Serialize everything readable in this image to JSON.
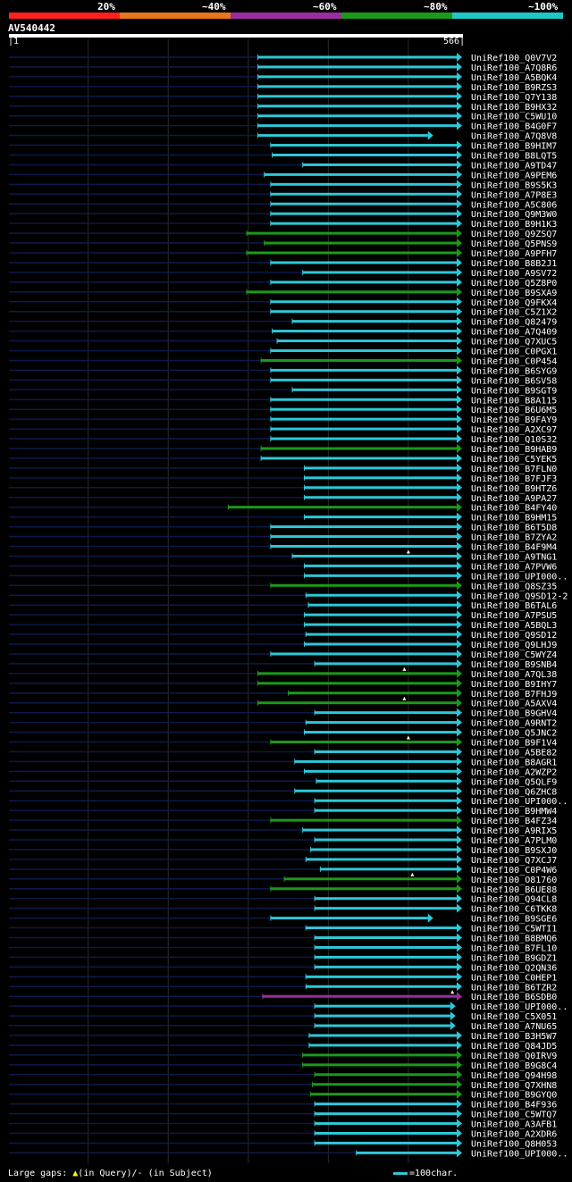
{
  "legend": [
    {
      "label": "20%",
      "color": "#ff2020"
    },
    {
      "label": "~40%",
      "color": "#e8761c"
    },
    {
      "label": "~60%",
      "color": "#9a2d9e"
    },
    {
      "label": "~80%",
      "color": "#1a9a1a"
    },
    {
      "label": "~100%",
      "color": "#1ec8c8"
    }
  ],
  "query": {
    "id": "AV540442",
    "start": "1",
    "end": "566"
  },
  "colors": {
    "cyan": "#2cc8d8",
    "green": "#1a9a1a",
    "purple": "#9a2d9e",
    "dark": "#0c1a4a",
    "grid": "#2a2a2a",
    "gap": "#ffffcc"
  },
  "hits": [
    {
      "label": "UniRef100_Q0V7V2",
      "start": 312,
      "end": 566,
      "color": "cyan"
    },
    {
      "label": "UniRef100_A7Q8R6",
      "start": 312,
      "end": 566,
      "color": "cyan"
    },
    {
      "label": "UniRef100_A5BQK4",
      "start": 312,
      "end": 566,
      "color": "cyan"
    },
    {
      "label": "UniRef100_B9RZS3",
      "start": 312,
      "end": 566,
      "color": "cyan"
    },
    {
      "label": "UniRef100_Q7Y138",
      "start": 312,
      "end": 566,
      "color": "cyan"
    },
    {
      "label": "UniRef100_B9HX32",
      "start": 312,
      "end": 566,
      "color": "cyan"
    },
    {
      "label": "UniRef100_C5WU10",
      "start": 312,
      "end": 566,
      "color": "cyan"
    },
    {
      "label": "UniRef100_B4G0F7",
      "start": 312,
      "end": 566,
      "color": "cyan"
    },
    {
      "label": "UniRef100_A7Q8V8",
      "start": 312,
      "end": 530,
      "color": "cyan"
    },
    {
      "label": "UniRef100_B9HIM7",
      "start": 328,
      "end": 566,
      "color": "cyan"
    },
    {
      "label": "UniRef100_B8LQT5",
      "start": 330,
      "end": 566,
      "color": "cyan"
    },
    {
      "label": "UniRef100_A9TD47",
      "start": 368,
      "end": 566,
      "color": "cyan"
    },
    {
      "label": "UniRef100_A9PEM6",
      "start": 320,
      "end": 566,
      "color": "cyan"
    },
    {
      "label": "UniRef100_B9S5K3",
      "start": 328,
      "end": 566,
      "color": "cyan"
    },
    {
      "label": "UniRef100_A7P8E3",
      "start": 328,
      "end": 566,
      "color": "cyan"
    },
    {
      "label": "UniRef100_A5C806",
      "start": 328,
      "end": 566,
      "color": "cyan"
    },
    {
      "label": "UniRef100_Q9M3W0",
      "start": 328,
      "end": 566,
      "color": "cyan"
    },
    {
      "label": "UniRef100_B9H1K3",
      "start": 328,
      "end": 566,
      "color": "cyan"
    },
    {
      "label": "UniRef100_Q9ZSQ7",
      "start": 298,
      "end": 566,
      "color": "green"
    },
    {
      "label": "UniRef100_Q5PNS9",
      "start": 320,
      "end": 566,
      "color": "green"
    },
    {
      "label": "UniRef100_A9PFH7",
      "start": 298,
      "end": 566,
      "color": "green"
    },
    {
      "label": "UniRef100_B8B2J1",
      "start": 328,
      "end": 566,
      "color": "cyan"
    },
    {
      "label": "UniRef100_A9SV72",
      "start": 368,
      "end": 566,
      "color": "cyan"
    },
    {
      "label": "UniRef100_Q5Z8P0",
      "start": 328,
      "end": 566,
      "color": "cyan"
    },
    {
      "label": "UniRef100_B9SXA9",
      "start": 298,
      "end": 566,
      "color": "green"
    },
    {
      "label": "UniRef100_Q9FKX4",
      "start": 328,
      "end": 566,
      "color": "cyan"
    },
    {
      "label": "UniRef100_C5Z1X2",
      "start": 328,
      "end": 566,
      "color": "cyan"
    },
    {
      "label": "UniRef100_Q82479",
      "start": 355,
      "end": 566,
      "color": "cyan"
    },
    {
      "label": "UniRef100_A7Q409",
      "start": 330,
      "end": 566,
      "color": "cyan"
    },
    {
      "label": "UniRef100_Q7XUC5",
      "start": 336,
      "end": 566,
      "color": "cyan"
    },
    {
      "label": "UniRef100_C0PGX1",
      "start": 328,
      "end": 566,
      "color": "cyan"
    },
    {
      "label": "UniRef100_C0P454",
      "start": 316,
      "end": 566,
      "color": "green"
    },
    {
      "label": "UniRef100_B6SYG9",
      "start": 328,
      "end": 566,
      "color": "cyan"
    },
    {
      "label": "UniRef100_B6SV58",
      "start": 328,
      "end": 566,
      "color": "cyan"
    },
    {
      "label": "UniRef100_B9SGT9",
      "start": 355,
      "end": 566,
      "color": "cyan"
    },
    {
      "label": "UniRef100_B8A115",
      "start": 328,
      "end": 566,
      "color": "cyan"
    },
    {
      "label": "UniRef100_B6U6M5",
      "start": 328,
      "end": 566,
      "color": "cyan"
    },
    {
      "label": "UniRef100_B9FAY9",
      "start": 328,
      "end": 566,
      "color": "cyan"
    },
    {
      "label": "UniRef100_A2XC97",
      "start": 328,
      "end": 566,
      "color": "cyan"
    },
    {
      "label": "UniRef100_Q10S32",
      "start": 328,
      "end": 566,
      "color": "cyan"
    },
    {
      "label": "UniRef100_B9HAB9",
      "start": 316,
      "end": 566,
      "color": "green"
    },
    {
      "label": "UniRef100_C5YEK5",
      "start": 316,
      "end": 566,
      "color": "cyan"
    },
    {
      "label": "UniRef100_B7FLN0",
      "start": 370,
      "end": 566,
      "color": "cyan"
    },
    {
      "label": "UniRef100_B7FJF3",
      "start": 370,
      "end": 566,
      "color": "cyan"
    },
    {
      "label": "UniRef100_B9HTZ6",
      "start": 370,
      "end": 566,
      "color": "cyan"
    },
    {
      "label": "UniRef100_A9PA27",
      "start": 370,
      "end": 566,
      "color": "cyan"
    },
    {
      "label": "UniRef100_B4FY40",
      "start": 275,
      "end": 566,
      "color": "green"
    },
    {
      "label": "UniRef100_B9HM15",
      "start": 370,
      "end": 566,
      "color": "cyan"
    },
    {
      "label": "UniRef100_B6T5D8",
      "start": 328,
      "end": 566,
      "color": "cyan"
    },
    {
      "label": "UniRef100_B7ZYA2",
      "start": 328,
      "end": 566,
      "color": "cyan"
    },
    {
      "label": "UniRef100_B4F9M4",
      "start": 328,
      "end": 566,
      "color": "cyan"
    },
    {
      "label": "UniRef100_A9TNG1",
      "start": 355,
      "end": 566,
      "color": "cyan",
      "gap": 500
    },
    {
      "label": "UniRef100_A7PVW6",
      "start": 370,
      "end": 566,
      "color": "cyan"
    },
    {
      "label": "UniRef100_UPI000..",
      "start": 370,
      "end": 566,
      "color": "cyan"
    },
    {
      "label": "UniRef100_Q8SZ35",
      "start": 328,
      "end": 566,
      "color": "green"
    },
    {
      "label": "UniRef100_Q9SD12-2",
      "start": 372,
      "end": 566,
      "color": "cyan"
    },
    {
      "label": "UniRef100_B6TAL6",
      "start": 375,
      "end": 566,
      "color": "cyan"
    },
    {
      "label": "UniRef100_A7PSU5",
      "start": 370,
      "end": 566,
      "color": "cyan"
    },
    {
      "label": "UniRef100_A5BQL3",
      "start": 370,
      "end": 566,
      "color": "cyan"
    },
    {
      "label": "UniRef100_Q9SD12",
      "start": 372,
      "end": 566,
      "color": "cyan"
    },
    {
      "label": "UniRef100_Q9LHJ9",
      "start": 370,
      "end": 566,
      "color": "cyan"
    },
    {
      "label": "UniRef100_C5WYZ4",
      "start": 328,
      "end": 566,
      "color": "cyan"
    },
    {
      "label": "UniRef100_B9SNB4",
      "start": 383,
      "end": 566,
      "color": "cyan"
    },
    {
      "label": "UniRef100_A7QL38",
      "start": 312,
      "end": 566,
      "color": "green",
      "gap": 495
    },
    {
      "label": "UniRef100_B9IHY7",
      "start": 312,
      "end": 566,
      "color": "green"
    },
    {
      "label": "UniRef100_B7FHJ9",
      "start": 350,
      "end": 566,
      "color": "green"
    },
    {
      "label": "UniRef100_A5AXV4",
      "start": 312,
      "end": 566,
      "color": "green",
      "gap": 495
    },
    {
      "label": "UniRef100_B9GHV4",
      "start": 383,
      "end": 566,
      "color": "cyan"
    },
    {
      "label": "UniRef100_A9RNT2",
      "start": 372,
      "end": 566,
      "color": "cyan"
    },
    {
      "label": "UniRef100_Q5JNC2",
      "start": 370,
      "end": 566,
      "color": "cyan"
    },
    {
      "label": "UniRef100_B9F1V4",
      "start": 328,
      "end": 566,
      "color": "green",
      "gap": 500
    },
    {
      "label": "UniRef100_A5BE82",
      "start": 383,
      "end": 566,
      "color": "cyan"
    },
    {
      "label": "UniRef100_B8AGR1",
      "start": 358,
      "end": 566,
      "color": "cyan"
    },
    {
      "label": "UniRef100_A2WZP2",
      "start": 370,
      "end": 566,
      "color": "cyan"
    },
    {
      "label": "UniRef100_Q5QLF9",
      "start": 385,
      "end": 566,
      "color": "cyan"
    },
    {
      "label": "UniRef100_Q6ZHC8",
      "start": 358,
      "end": 566,
      "color": "cyan"
    },
    {
      "label": "UniRef100_UPI000..",
      "start": 383,
      "end": 566,
      "color": "cyan"
    },
    {
      "label": "UniRef100_B9HMW4",
      "start": 383,
      "end": 566,
      "color": "cyan"
    },
    {
      "label": "UniRef100_B4FZ34",
      "start": 328,
      "end": 566,
      "color": "green"
    },
    {
      "label": "UniRef100_A9RIX5",
      "start": 368,
      "end": 566,
      "color": "cyan"
    },
    {
      "label": "UniRef100_A7PLM0",
      "start": 383,
      "end": 566,
      "color": "cyan"
    },
    {
      "label": "UniRef100_B9SXJ0",
      "start": 378,
      "end": 566,
      "color": "cyan"
    },
    {
      "label": "UniRef100_Q7XCJ7",
      "start": 372,
      "end": 566,
      "color": "cyan"
    },
    {
      "label": "UniRef100_C0P4W6",
      "start": 390,
      "end": 566,
      "color": "cyan"
    },
    {
      "label": "UniRef100_O81760",
      "start": 345,
      "end": 566,
      "color": "green",
      "gap": 505
    },
    {
      "label": "UniRef100_B6UE88",
      "start": 328,
      "end": 566,
      "color": "green"
    },
    {
      "label": "UniRef100_Q94CL8",
      "start": 383,
      "end": 566,
      "color": "cyan"
    },
    {
      "label": "UniRef100_C6TKK8",
      "start": 383,
      "end": 566,
      "color": "cyan"
    },
    {
      "label": "UniRef100_B9SGE6",
      "start": 328,
      "end": 530,
      "color": "cyan"
    },
    {
      "label": "UniRef100_C5WTI1",
      "start": 372,
      "end": 566,
      "color": "cyan"
    },
    {
      "label": "UniRef100_B8BMQ6",
      "start": 383,
      "end": 566,
      "color": "cyan"
    },
    {
      "label": "UniRef100_B7FL10",
      "start": 383,
      "end": 566,
      "color": "cyan"
    },
    {
      "label": "UniRef100_B9GDZ1",
      "start": 383,
      "end": 566,
      "color": "cyan"
    },
    {
      "label": "UniRef100_Q2QN36",
      "start": 383,
      "end": 566,
      "color": "cyan"
    },
    {
      "label": "UniRef100_C0HEP1",
      "start": 372,
      "end": 566,
      "color": "cyan"
    },
    {
      "label": "UniRef100_B6TZR2",
      "start": 372,
      "end": 566,
      "color": "cyan"
    },
    {
      "label": "UniRef100_B6SDB0",
      "start": 318,
      "end": 566,
      "color": "purple",
      "gap": 555
    },
    {
      "label": "UniRef100_UPI000..",
      "start": 383,
      "end": 558,
      "color": "cyan"
    },
    {
      "label": "UniRef100_C5X051",
      "start": 383,
      "end": 558,
      "color": "cyan"
    },
    {
      "label": "UniRef100_A7NU65",
      "start": 383,
      "end": 558,
      "color": "cyan"
    },
    {
      "label": "UniRef100_B3H5W7",
      "start": 376,
      "end": 566,
      "color": "cyan"
    },
    {
      "label": "UniRef100_Q84JD5",
      "start": 376,
      "end": 566,
      "color": "cyan"
    },
    {
      "label": "UniRef100_Q0IRV9",
      "start": 368,
      "end": 566,
      "color": "green"
    },
    {
      "label": "UniRef100_B9G8C4",
      "start": 368,
      "end": 566,
      "color": "green"
    },
    {
      "label": "UniRef100_Q94H98",
      "start": 383,
      "end": 566,
      "color": "green"
    },
    {
      "label": "UniRef100_Q7XHN8",
      "start": 380,
      "end": 566,
      "color": "green"
    },
    {
      "label": "UniRef100_B9GYQ0",
      "start": 378,
      "end": 566,
      "color": "green"
    },
    {
      "label": "UniRef100_B4F936",
      "start": 383,
      "end": 566,
      "color": "cyan"
    },
    {
      "label": "UniRef100_C5WTQ7",
      "start": 383,
      "end": 566,
      "color": "cyan"
    },
    {
      "label": "UniRef100_A3AFB1",
      "start": 383,
      "end": 566,
      "color": "cyan"
    },
    {
      "label": "UniRef100_A2XDR6",
      "start": 383,
      "end": 566,
      "color": "cyan"
    },
    {
      "label": "UniRef100_Q8H053",
      "start": 383,
      "end": 566,
      "color": "cyan"
    },
    {
      "label": "UniRef100_UPI000..",
      "start": 435,
      "end": 566,
      "color": "cyan"
    }
  ],
  "footer": {
    "prefix": "Large gaps:",
    "tri": "▲",
    "in_query": "(in Query)/- (in Subject)",
    "scale": "=100char."
  }
}
